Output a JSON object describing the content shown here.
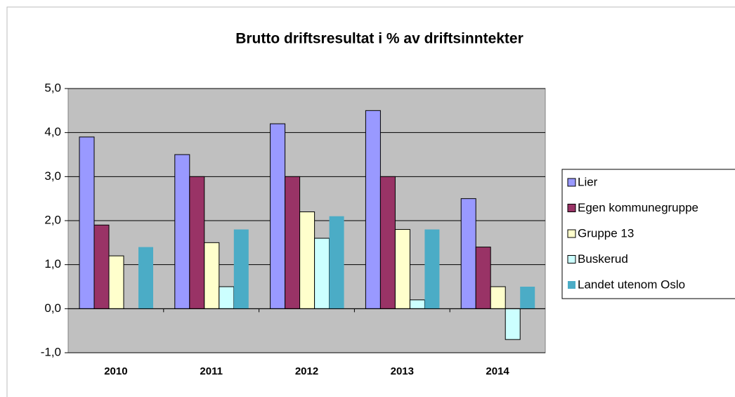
{
  "chart_data": {
    "type": "bar",
    "title": "Brutto driftsresultat i % av driftsinntekter",
    "categories": [
      "2010",
      "2011",
      "2012",
      "2013",
      "2014"
    ],
    "series": [
      {
        "name": "Lier",
        "color": "#9999ff",
        "values": [
          3.9,
          3.5,
          4.2,
          4.5,
          2.5
        ]
      },
      {
        "name": "Egen kommunegruppe",
        "color": "#993366",
        "values": [
          1.9,
          3.0,
          3.0,
          3.0,
          1.4
        ]
      },
      {
        "name": "Gruppe 13",
        "color": "#ffffcc",
        "values": [
          1.2,
          1.5,
          2.2,
          1.8,
          0.5
        ]
      },
      {
        "name": "Buskerud",
        "color": "#ccffff",
        "values": [
          null,
          0.5,
          1.6,
          0.2,
          -0.7
        ]
      },
      {
        "name": "Landet utenom Oslo",
        "color": "#4bacc6",
        "values": [
          1.4,
          1.8,
          2.1,
          1.8,
          0.5
        ]
      }
    ],
    "ylim": [
      -1,
      5
    ],
    "yticks": [
      {
        "value": -1,
        "label": "-1,0"
      },
      {
        "value": 0,
        "label": "0,0"
      },
      {
        "value": 1,
        "label": "1,0"
      },
      {
        "value": 2,
        "label": "2,0"
      },
      {
        "value": 3,
        "label": "3,0"
      },
      {
        "value": 4,
        "label": "4,0"
      },
      {
        "value": 5,
        "label": "5,0"
      }
    ],
    "grid": true,
    "legend": "right",
    "plot_background": "#c0c0c0"
  }
}
